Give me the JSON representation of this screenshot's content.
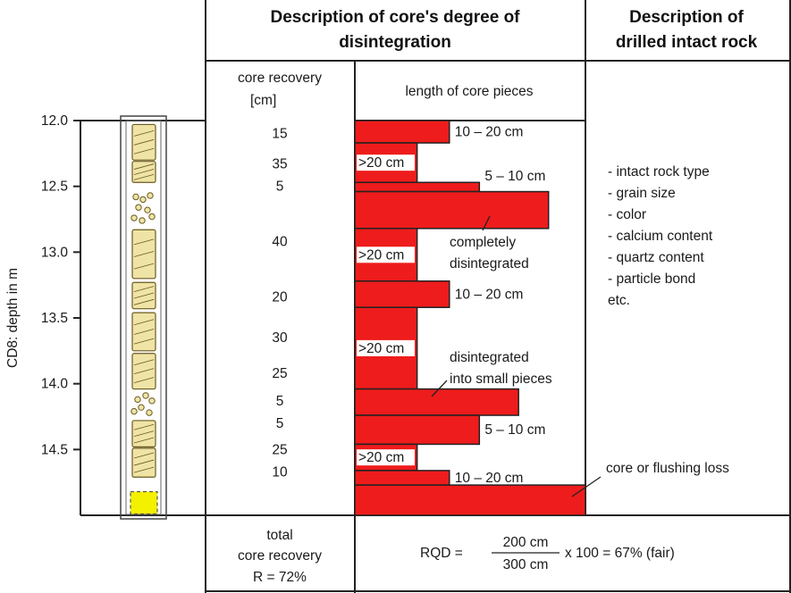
{
  "header": {
    "disintegration_title_line1": "Description of core's degree of",
    "disintegration_title_line2": "disintegration",
    "intact_title_line1": "Description of",
    "intact_title_line2": "drilled intact rock"
  },
  "columns": {
    "recovery_header_line1": "core recovery",
    "recovery_header_line2": "[cm]",
    "length_header": "length of core pieces"
  },
  "depth_axis": {
    "label": "CD8: depth in m",
    "ticks": [
      "12.0",
      "12.5",
      "13.0",
      "13.5",
      "14.0",
      "14.5"
    ]
  },
  "recovery_values": [
    {
      "value": "15",
      "depth": 12.1
    },
    {
      "value": "35",
      "depth": 12.33
    },
    {
      "value": "5",
      "depth": 12.5
    },
    {
      "value": "40",
      "depth": 12.92
    },
    {
      "value": "20",
      "depth": 13.34
    },
    {
      "value": "30",
      "depth": 13.65
    },
    {
      "value": "25",
      "depth": 13.92
    },
    {
      "value": "5",
      "depth": 14.13
    },
    {
      "value": "5",
      "depth": 14.3
    },
    {
      "value": "25",
      "depth": 14.5
    },
    {
      "value": "10",
      "depth": 14.67
    }
  ],
  "length_pieces": [
    {
      "top": 12.0,
      "bottom": 12.17,
      "relative_length": 0.41,
      "label": "10 – 20 cm"
    },
    {
      "top": 12.17,
      "bottom": 12.47,
      "relative_length": 0.27,
      "label": ">20 cm"
    },
    {
      "top": 12.47,
      "bottom": 12.54,
      "relative_length": 0.54,
      "label": "5 – 10 cm"
    },
    {
      "top": 12.54,
      "bottom": 12.82,
      "relative_length": 0.84,
      "label": ""
    },
    {
      "top": 12.82,
      "bottom": 13.22,
      "relative_length": 0.27,
      "label": ">20 cm"
    },
    {
      "top": 13.22,
      "bottom": 13.42,
      "relative_length": 0.41,
      "label": "10 – 20 cm"
    },
    {
      "top": 13.42,
      "bottom": 14.04,
      "relative_length": 0.27,
      "label": ">20 cm"
    },
    {
      "top": 14.04,
      "bottom": 14.24,
      "relative_length": 0.71,
      "label": ""
    },
    {
      "top": 14.24,
      "bottom": 14.46,
      "relative_length": 0.54,
      "label": "5 – 10 cm"
    },
    {
      "top": 14.46,
      "bottom": 14.66,
      "relative_length": 0.27,
      "label": ">20 cm"
    },
    {
      "top": 14.66,
      "bottom": 14.77,
      "relative_length": 0.41,
      "label": "10 – 20 cm"
    },
    {
      "top": 14.77,
      "bottom": 15.0,
      "relative_length": 1.0,
      "label": ""
    }
  ],
  "annotations": {
    "completely_line1": "completely",
    "completely_line2": "disintegrated",
    "small_line1": "disintegrated",
    "small_line2": "into small pieces",
    "loss": "core or flushing loss"
  },
  "intact_rock_list": [
    "- intact rock type",
    "- grain size",
    "- color",
    "- calcium content",
    "- quartz content",
    "- particle bond",
    "  etc."
  ],
  "footer": {
    "total_line1": "total",
    "total_line2": "core recovery",
    "total_line3": "R = 72%",
    "rqd_label": "RQD =",
    "rqd_numerator": "200 cm",
    "rqd_denominator": "300 cm",
    "rqd_result": "x 100 = 67% (fair)"
  },
  "colors": {
    "bar": "#ee1c1c",
    "core": "#efe4a6",
    "core_edge": "#6b5a1e",
    "loss_fill": "#f3f000"
  }
}
